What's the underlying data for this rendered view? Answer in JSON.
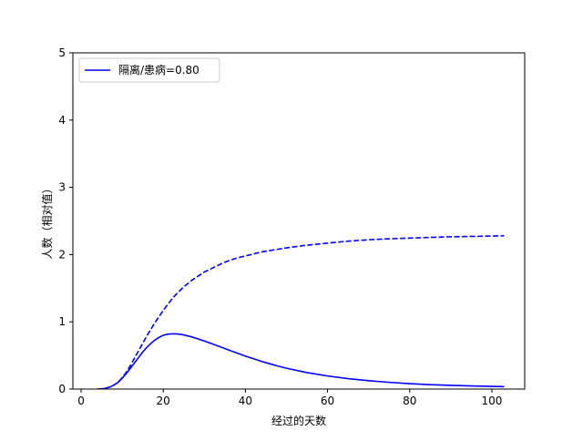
{
  "chart_data": {
    "type": "line",
    "title": "",
    "xlabel": "经过的天数",
    "ylabel": "人数（相对值）",
    "xlim": [
      -2,
      108
    ],
    "ylim": [
      0,
      5
    ],
    "xticks": [
      0,
      20,
      40,
      60,
      80,
      100
    ],
    "yticks": [
      0,
      1,
      2,
      3,
      4,
      5
    ],
    "grid": false,
    "legend_position": "top-left",
    "series": [
      {
        "name": "隔离/患病=0.80",
        "color": "#0000ff",
        "line_style": "solid",
        "x": [
          4,
          5,
          6,
          7,
          8,
          9,
          10,
          11,
          12,
          13,
          14,
          15,
          16,
          17,
          18,
          19,
          20,
          21,
          22,
          23,
          24,
          25,
          26,
          27,
          28,
          29,
          30,
          32,
          34,
          36,
          38,
          40,
          42,
          44,
          46,
          48,
          50,
          55,
          60,
          65,
          70,
          75,
          80,
          85,
          90,
          95,
          100,
          103
        ],
        "y": [
          0.0,
          0.003,
          0.012,
          0.03,
          0.06,
          0.1,
          0.16,
          0.23,
          0.31,
          0.39,
          0.47,
          0.55,
          0.62,
          0.68,
          0.73,
          0.77,
          0.8,
          0.815,
          0.82,
          0.82,
          0.815,
          0.805,
          0.79,
          0.775,
          0.755,
          0.735,
          0.715,
          0.67,
          0.625,
          0.58,
          0.535,
          0.49,
          0.45,
          0.41,
          0.375,
          0.34,
          0.31,
          0.245,
          0.195,
          0.155,
          0.125,
          0.1,
          0.08,
          0.065,
          0.055,
          0.047,
          0.04,
          0.036
        ]
      },
      {
        "name": "",
        "color": "#0000ff",
        "line_style": "dashed",
        "x": [
          4,
          5,
          6,
          7,
          8,
          9,
          10,
          11,
          12,
          13,
          14,
          15,
          16,
          17,
          18,
          19,
          20,
          21,
          22,
          23,
          24,
          25,
          26,
          27,
          28,
          29,
          30,
          32,
          34,
          36,
          38,
          40,
          42,
          44,
          46,
          48,
          50,
          55,
          60,
          65,
          70,
          75,
          80,
          85,
          90,
          95,
          100,
          103
        ],
        "y": [
          0.0,
          0.003,
          0.012,
          0.03,
          0.06,
          0.1,
          0.17,
          0.25,
          0.35,
          0.46,
          0.57,
          0.68,
          0.79,
          0.89,
          0.99,
          1.08,
          1.17,
          1.25,
          1.33,
          1.4,
          1.46,
          1.52,
          1.57,
          1.62,
          1.66,
          1.7,
          1.74,
          1.8,
          1.86,
          1.91,
          1.95,
          1.98,
          2.01,
          2.04,
          2.06,
          2.08,
          2.1,
          2.14,
          2.17,
          2.2,
          2.22,
          2.235,
          2.245,
          2.255,
          2.265,
          2.27,
          2.275,
          2.28
        ]
      }
    ]
  }
}
